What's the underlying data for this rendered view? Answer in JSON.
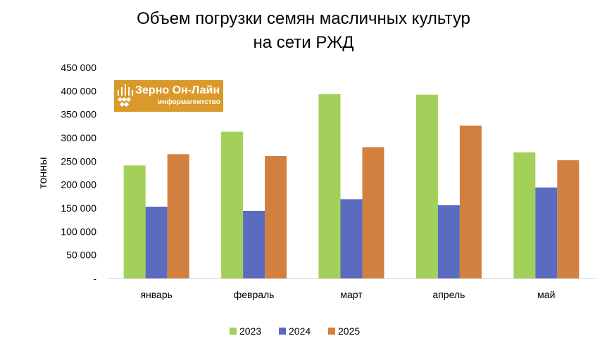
{
  "chart_data": {
    "type": "bar",
    "title_line1": "Объем погрузки семян масличных культур",
    "title_line2": "на сети РЖД",
    "ylabel": "тонны",
    "ylim": [
      0,
      450000
    ],
    "yticks": [
      "-",
      "50 000",
      "100 000",
      "150 000",
      "200 000",
      "250 000",
      "300 000",
      "350 000",
      "400 000",
      "450 000"
    ],
    "yticks_values": [
      0,
      50000,
      100000,
      150000,
      200000,
      250000,
      300000,
      350000,
      400000,
      450000
    ],
    "categories": [
      "январь",
      "февраль",
      "март",
      "апрель",
      "май"
    ],
    "series": [
      {
        "name": "2023",
        "color": "#a3d05a",
        "values": [
          241000,
          313000,
          393000,
          392000,
          269000
        ]
      },
      {
        "name": "2024",
        "color": "#5b6bc0",
        "values": [
          153000,
          144000,
          169000,
          156000,
          194000
        ]
      },
      {
        "name": "2025",
        "color": "#d28040",
        "values": [
          265000,
          261000,
          280000,
          326000,
          252000
        ]
      }
    ],
    "legend_position": "bottom",
    "grid": false
  },
  "logo": {
    "name": "Зерно Он-Лайн",
    "subtitle": "информагентство"
  }
}
